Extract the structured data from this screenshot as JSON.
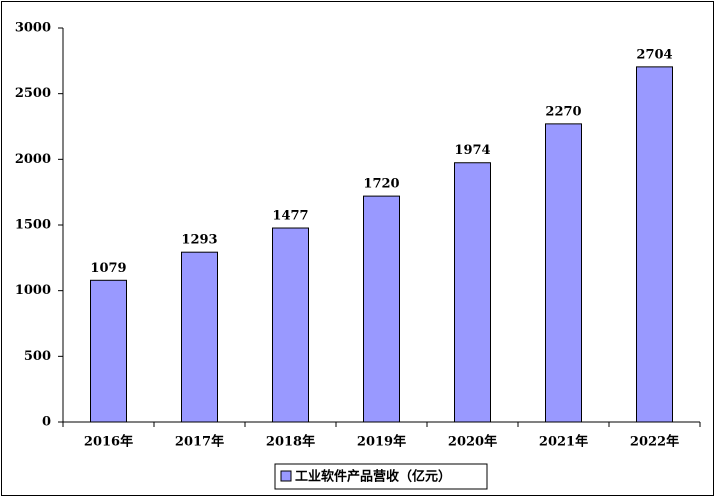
{
  "chart_data": {
    "type": "bar",
    "categories": [
      "2016年",
      "2017年",
      "2018年",
      "2019年",
      "2020年",
      "2021年",
      "2022年"
    ],
    "series": [
      {
        "name": "工业软件产品营收（亿元）",
        "color": "#9999ff",
        "values": [
          1079,
          1293,
          1477,
          1720,
          1974,
          2270,
          2704
        ]
      }
    ],
    "ylim": [
      0,
      3000
    ],
    "yticks": [
      0,
      500,
      1000,
      1500,
      2000,
      2500,
      3000
    ],
    "data_labels": true,
    "legend": "bottom"
  }
}
